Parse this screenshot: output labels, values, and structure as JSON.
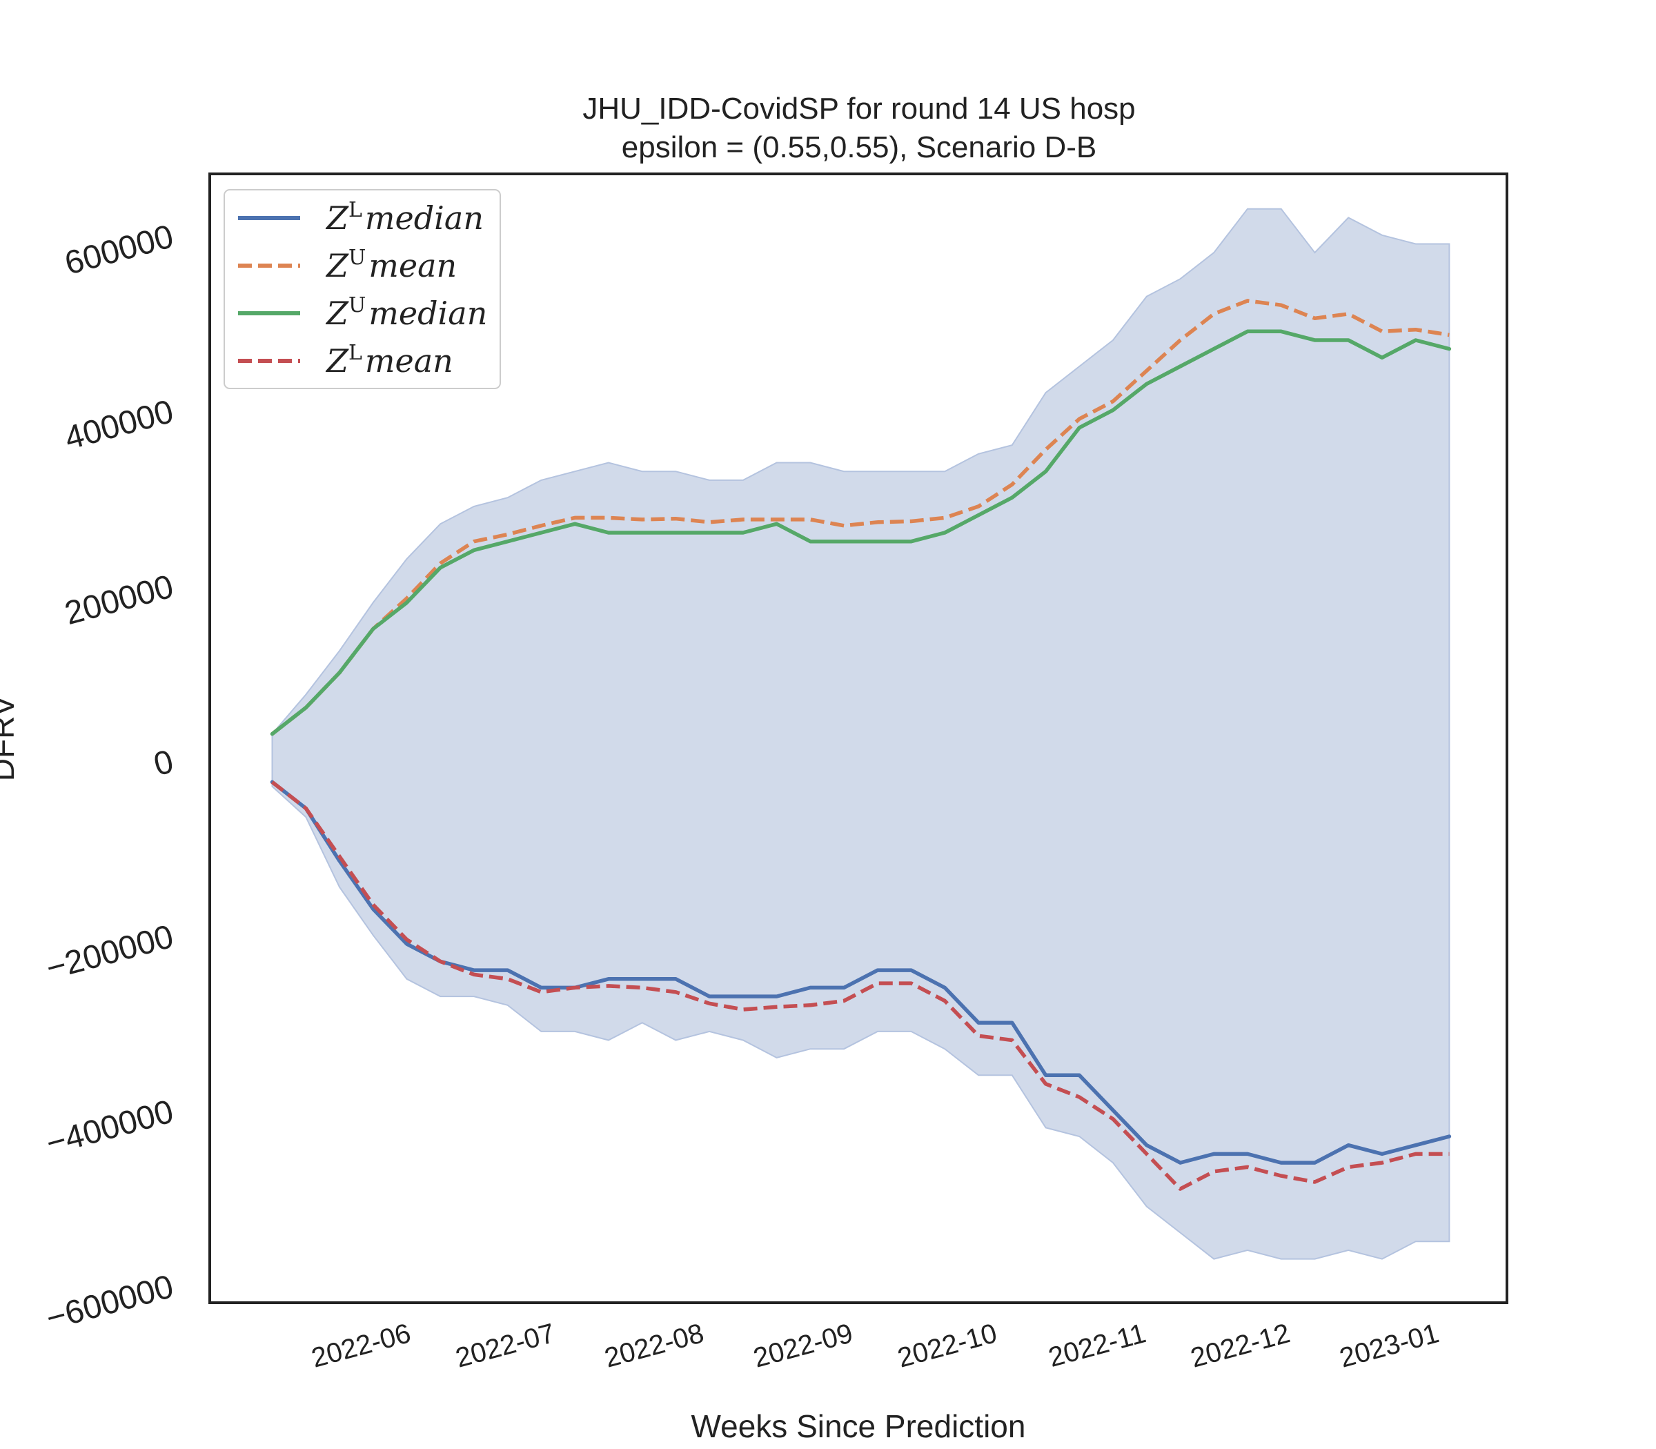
{
  "chart_data": {
    "type": "line",
    "title": "JHU_IDD-CovidSP for round 14 US  hosp",
    "subtitle": "epsilon = (0.55,0.55), Scenario D-B",
    "xlabel": "Weeks Since Prediction",
    "ylabel": "DFRV",
    "ylim": [
      -620000,
      670000
    ],
    "yticks": [
      -600000,
      -400000,
      -200000,
      0,
      200000,
      400000,
      600000
    ],
    "ytick_labels": [
      "−600000",
      "−400000",
      "−200000",
      "0",
      "200000",
      "400000",
      "600000"
    ],
    "xticks": [
      "2022-06-01",
      "2022-07-01",
      "2022-08-01",
      "2022-09-01",
      "2022-10-01",
      "2022-11-01",
      "2022-12-01",
      "2023-01-01"
    ],
    "xtick_labels": [
      "2022-06",
      "2022-07",
      "2022-08",
      "2022-09",
      "2022-10",
      "2022-11",
      "2022-12",
      "2023-01"
    ],
    "xlim": [
      "2022-04-25",
      "2023-01-20"
    ],
    "grid": false,
    "legend_position": "top-left",
    "x": [
      "2022-05-08",
      "2022-05-15",
      "2022-05-22",
      "2022-05-29",
      "2022-06-05",
      "2022-06-12",
      "2022-06-19",
      "2022-06-26",
      "2022-07-03",
      "2022-07-10",
      "2022-07-17",
      "2022-07-24",
      "2022-07-31",
      "2022-08-07",
      "2022-08-14",
      "2022-08-21",
      "2022-08-28",
      "2022-09-04",
      "2022-09-11",
      "2022-09-18",
      "2022-09-25",
      "2022-10-02",
      "2022-10-09",
      "2022-10-16",
      "2022-10-23",
      "2022-10-30",
      "2022-11-06",
      "2022-11-13",
      "2022-11-20",
      "2022-11-27",
      "2022-12-04",
      "2022-12-11",
      "2022-12-18",
      "2022-12-25",
      "2023-01-01",
      "2023-01-08"
    ],
    "band": {
      "name": "range",
      "color": "#d1daea",
      "edge_color": "#b4c3df",
      "upper": [
        30000,
        75000,
        125000,
        180000,
        230000,
        270000,
        290000,
        300000,
        320000,
        330000,
        340000,
        330000,
        330000,
        320000,
        320000,
        340000,
        340000,
        330000,
        330000,
        330000,
        330000,
        350000,
        360000,
        420000,
        450000,
        480000,
        530000,
        550000,
        580000,
        630000,
        630000,
        580000,
        620000,
        600000,
        590000,
        590000
      ],
      "lower": [
        -30000,
        -65000,
        -145000,
        -200000,
        -250000,
        -270000,
        -270000,
        -280000,
        -310000,
        -310000,
        -320000,
        -300000,
        -320000,
        -310000,
        -320000,
        -340000,
        -330000,
        -330000,
        -310000,
        -310000,
        -330000,
        -360000,
        -360000,
        -420000,
        -430000,
        -460000,
        -510000,
        -540000,
        -570000,
        -560000,
        -570000,
        -570000,
        -560000,
        -570000,
        -550000,
        -550000
      ]
    },
    "series": [
      {
        "name": "Z^L median",
        "legend_base": "Z",
        "legend_sup": "L",
        "legend_rest": "median",
        "color": "#4c72b0",
        "dashed": false,
        "values": [
          -25000,
          -55000,
          -115000,
          -170000,
          -210000,
          -230000,
          -240000,
          -240000,
          -260000,
          -260000,
          -250000,
          -250000,
          -250000,
          -270000,
          -270000,
          -270000,
          -260000,
          -260000,
          -240000,
          -240000,
          -260000,
          -300000,
          -300000,
          -360000,
          -360000,
          -400000,
          -440000,
          -460000,
          -450000,
          -450000,
          -460000,
          -460000,
          -440000,
          -450000,
          -440000,
          -430000
        ]
      },
      {
        "name": "Z^U mean",
        "legend_base": "Z",
        "legend_sup": "U",
        "legend_rest": "mean",
        "color": "#dd8452",
        "dashed": true,
        "values": [
          30000,
          60000,
          100000,
          150000,
          185000,
          225000,
          250000,
          258000,
          268000,
          277000,
          277000,
          275000,
          276000,
          272000,
          275000,
          275000,
          275000,
          268000,
          272000,
          273000,
          277000,
          290000,
          315000,
          355000,
          390000,
          410000,
          445000,
          480000,
          510000,
          525000,
          520000,
          505000,
          510000,
          490000,
          492000,
          486000
        ]
      },
      {
        "name": "Z^U median",
        "legend_base": "Z",
        "legend_sup": "U",
        "legend_rest": "median",
        "color": "#55a868",
        "dashed": false,
        "values": [
          30000,
          60000,
          100000,
          150000,
          180000,
          220000,
          240000,
          250000,
          260000,
          270000,
          260000,
          260000,
          260000,
          260000,
          260000,
          270000,
          250000,
          250000,
          250000,
          250000,
          260000,
          280000,
          300000,
          330000,
          380000,
          400000,
          430000,
          450000,
          470000,
          490000,
          490000,
          480000,
          480000,
          460000,
          480000,
          470000
        ]
      },
      {
        "name": "Z^L mean",
        "legend_base": "Z",
        "legend_sup": "L",
        "legend_rest": "mean",
        "color": "#c44e52",
        "dashed": true,
        "values": [
          -25000,
          -55000,
          -110000,
          -165000,
          -205000,
          -230000,
          -245000,
          -250000,
          -265000,
          -260000,
          -258000,
          -260000,
          -265000,
          -278000,
          -285000,
          -282000,
          -280000,
          -275000,
          -255000,
          -255000,
          -275000,
          -315000,
          -320000,
          -370000,
          -385000,
          -410000,
          -450000,
          -490000,
          -470000,
          -465000,
          -475000,
          -482000,
          -465000,
          -460000,
          -450000,
          -450000
        ]
      }
    ]
  }
}
